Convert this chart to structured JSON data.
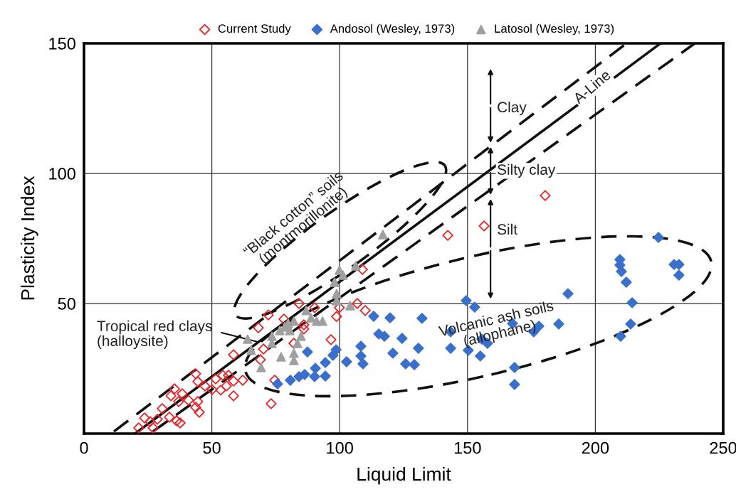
{
  "chart_data": {
    "type": "scatter",
    "xlabel": "Liquid Limit",
    "ylabel": "Plasticity Index",
    "xlim": [
      0,
      250
    ],
    "xticks": [
      0,
      50,
      100,
      150,
      200,
      250
    ],
    "ylim": [
      0,
      150
    ],
    "yticks": [
      50,
      100,
      150
    ],
    "grid": true,
    "legend": "top",
    "series": [
      {
        "name": "Current Study",
        "color": "#e8262a",
        "marker": "diamond",
        "x": [
          72.1,
          68.2,
          78.2,
          70.2,
          69.0,
          58.5,
          43.7,
          44.5,
          51.5,
          54.3,
          56.5,
          58.5,
          62.1,
          47.3,
          50.1,
          53.5,
          55.7,
          58.5,
          35.4,
          38.4,
          40.9,
          44.5,
          43.7,
          45.1,
          34.0,
          37.0,
          30.6,
          33.4,
          36.2,
          37.6,
          23.7,
          25.9,
          28.7,
          21.4,
          27.0,
          73.2,
          74.6,
          108.9,
          84.1,
          90.2,
          98.8,
          99.9,
          106.9,
          110.0,
          86.0,
          86.0,
          96.6,
          82.1,
          142.3,
          156.5,
          180.4
        ],
        "values": [
          45.6,
          40.7,
          44.0,
          32.5,
          28.4,
          30.3,
          23.0,
          20.0,
          21.0,
          22.4,
          22.4,
          20.2,
          20.5,
          18.3,
          16.9,
          16.7,
          18.3,
          14.5,
          17.2,
          15.3,
          12.8,
          12.3,
          10.1,
          8.2,
          14.5,
          12.3,
          9.6,
          6.3,
          4.9,
          4.1,
          6.0,
          4.6,
          5.5,
          2.2,
          2.2,
          11.5,
          20.5,
          63.1,
          50.0,
          48.4,
          45.0,
          48.4,
          50.0,
          47.3,
          41.8,
          40.2,
          36.1,
          34.7,
          76.2,
          79.8,
          91.5
        ]
      },
      {
        "name": "Andosol (Wesley, 1973)",
        "color": "#3a70cc",
        "marker": "diamond",
        "x": [
          75.7,
          80.7,
          84.1,
          86.3,
          90.2,
          94.4,
          90.5,
          94.4,
          87.4,
          98.6,
          97.4,
          113.3,
          119.7,
          132.2,
          149.5,
          152.8,
          143.4,
          115.3,
          117.5,
          124.4,
          155.6,
          157.8,
          108.3,
          130.8,
          143.4,
          150.3,
          120.8,
          108.3,
          155.0,
          109.1,
          102.7,
          125.8,
          129.2,
          168.4,
          168.4,
          167.6,
          175.9,
          177.9,
          224.7,
          209.6,
          209.6,
          210.2,
          212.1,
          214.4,
          213.8,
          209.9,
          230.8,
          232.7,
          232.7,
          189.3,
          185.7
        ],
        "values": [
          19.1,
          20.5,
          21.9,
          22.7,
          21.9,
          22.1,
          25.1,
          27.3,
          31.4,
          32.2,
          30.1,
          45.1,
          44.5,
          44.3,
          51.1,
          48.6,
          39.1,
          38.3,
          37.4,
          36.6,
          36.3,
          34.7,
          33.6,
          32.8,
          32.8,
          32.0,
          30.9,
          29.8,
          29.8,
          26.8,
          27.6,
          26.8,
          26.5,
          25.4,
          18.9,
          42.3,
          39.1,
          41.3,
          75.4,
          66.9,
          64.8,
          62.3,
          58.2,
          50.3,
          42.1,
          37.4,
          65.0,
          65.0,
          60.9,
          53.8,
          42.1
        ]
      },
      {
        "name": "Latosol (Wesley, 1973)",
        "color": "#a0a0a0",
        "marker": "triangle",
        "x": [
          116.9,
          106.3,
          99.9,
          101.3,
          98.0,
          98.8,
          98.8,
          104.1,
          86.9,
          88.8,
          91.0,
          93.3,
          82.1,
          79.9,
          78.5,
          76.6,
          80.5,
          84.9,
          73.5,
          64.0,
          73.5,
          65.4,
          82.1,
          77.1,
          82.1,
          69.3,
          83.5
        ],
        "values": [
          76.5,
          64.5,
          62.8,
          60.9,
          58.2,
          53.8,
          51.1,
          49.2,
          47.3,
          44.5,
          43.2,
          43.2,
          43.2,
          42.3,
          41.0,
          39.6,
          39.6,
          37.4,
          37.4,
          36.3,
          34.7,
          32.0,
          30.9,
          29.5,
          28.1,
          25.4,
          34.7
        ]
      },
      {
        "type": "line",
        "color": "#111111",
        "line_style": "dashed",
        "x": [
          11.7,
          212.2
        ],
        "values": [
          0.8,
          150
        ]
      },
      {
        "type": "line",
        "color": "#111111",
        "line_style": "solid",
        "x": [
          20,
          225.5
        ],
        "values": [
          0,
          150
        ]
      },
      {
        "type": "line",
        "color": "#111111",
        "line_style": "dashed",
        "x": [
          27,
          238.9
        ],
        "values": [
          0.8,
          150
        ]
      }
    ],
    "annotations": [
      "Clay",
      "Silty clay",
      "Silt",
      "A-Line",
      "“Black cotton” soils\n(montmorillonite)",
      "Volcanic ash soils\n(allophane)",
      {
        "text": "Tropical red clays\n(halloysite)",
        "x": 69,
        "y": 35
      }
    ]
  }
}
